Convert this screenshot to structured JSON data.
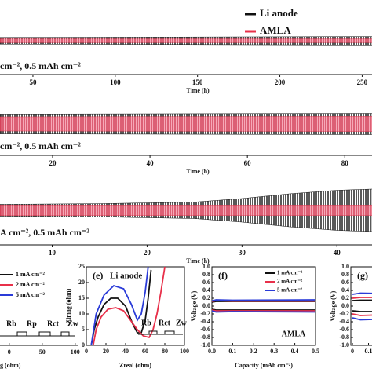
{
  "legend": [
    {
      "name": "Li anode",
      "color": "#111111"
    },
    {
      "name": "AMLA",
      "color": "#e8304a"
    }
  ],
  "chart_data": [
    {
      "type": "band",
      "text": "cm⁻², 0.5 mAh cm⁻²",
      "xlabel": "Time (h)",
      "xlim": [
        30,
        256
      ],
      "xticks": [
        50,
        100,
        150,
        200,
        250
      ],
      "ylim": [
        -100,
        100
      ],
      "series": [
        {
          "x": [
            30,
            150,
            256
          ],
          "values": [
            14,
            16,
            18
          ]
        },
        {
          "x": [
            30,
            256
          ],
          "values": [
            8,
            8
          ]
        }
      ]
    },
    {
      "type": "band",
      "text": "cm⁻², 0.5 mAh cm⁻²",
      "xlabel": "Time (h)",
      "xlim": [
        9.2,
        85.6
      ],
      "xticks": [
        20,
        40,
        60,
        80
      ],
      "ylim": [
        -100,
        100
      ],
      "series": [
        {
          "x": [
            9.2,
            85.6
          ],
          "values": [
            42,
            45
          ]
        },
        {
          "x": [
            9.2,
            85.6
          ],
          "values": [
            30,
            32
          ]
        }
      ]
    },
    {
      "type": "band",
      "text": "A cm⁻², 0.5 mAh cm⁻²",
      "xlabel": "Time (h)",
      "xlim": [
        4.5,
        43.7
      ],
      "xticks": [
        10,
        20,
        30,
        40
      ],
      "ylim": [
        -100,
        100
      ],
      "series": [
        {
          "x": [
            4.5,
            15,
            25,
            30,
            35,
            40,
            43.7
          ],
          "values": [
            25,
            28,
            35,
            50,
            70,
            85,
            90
          ]
        },
        {
          "x": [
            4.5,
            43.7
          ],
          "values": [
            22,
            22
          ]
        }
      ]
    },
    {
      "type": "circuit",
      "xlabel": "g (ohm)",
      "xlim": [
        -20,
        105
      ],
      "xticks": [
        0,
        50,
        100
      ],
      "series": [
        {
          "name": "1 mA cm⁻²",
          "color": "#111111"
        },
        {
          "name": "2 mA cm⁻²",
          "color": "#e8304a"
        },
        {
          "name": "5 mA cm⁻²",
          "color": "#2a3bd8"
        }
      ],
      "elements": [
        {
          "label": "Rb",
          "color": "#111111"
        },
        {
          "label": "Rp",
          "color": "#22b0d8"
        },
        {
          "label": "Rct",
          "color": "#f08a20"
        },
        {
          "label": "Zw",
          "color": "#111111"
        }
      ]
    },
    {
      "type": "line",
      "label": "(e)",
      "title": "Li anode",
      "xlabel": "Zreal (ohm)",
      "ylabel": "Zimag (ohm)",
      "xlim": [
        0,
        100
      ],
      "ylim": [
        0,
        25
      ],
      "xticks": [
        0,
        20,
        40,
        60,
        80,
        100
      ],
      "yticks": [
        0,
        5,
        10,
        15,
        20,
        25
      ],
      "elements": [
        {
          "label": "Rb",
          "color": "#111111"
        },
        {
          "label": "Rct",
          "color": "#f08a20"
        },
        {
          "label": "Zw",
          "color": "#111111"
        }
      ],
      "series": [
        {
          "color": "#111111",
          "x": [
            5,
            8,
            12,
            18,
            25,
            32,
            40,
            47,
            52,
            56,
            60,
            63,
            66
          ],
          "values": [
            0,
            5,
            9,
            13,
            15,
            15,
            12.5,
            7,
            4,
            4,
            8,
            15,
            24
          ]
        },
        {
          "color": "#e8304a",
          "x": [
            7,
            10,
            15,
            22,
            30,
            38,
            45,
            52,
            58,
            64,
            68,
            72,
            76,
            80
          ],
          "values": [
            0,
            5,
            9,
            11.5,
            12,
            11,
            8,
            5,
            3,
            2.5,
            5,
            10,
            17,
            25
          ]
        },
        {
          "color": "#2a3bd8",
          "x": [
            5,
            10,
            18,
            28,
            38,
            46,
            52,
            56,
            60,
            63
          ],
          "values": [
            0,
            10,
            16,
            19,
            18,
            13,
            8,
            10,
            17,
            25
          ]
        }
      ]
    },
    {
      "type": "line",
      "label": "(f)",
      "title": "AMLA",
      "xlabel": "Capacity (mAh cm⁻²)",
      "ylabel": "Voltage (V)",
      "xlim": [
        0,
        0.5
      ],
      "ylim": [
        -1,
        1
      ],
      "xticks": [
        {
          "value": 0,
          "label": "0.0"
        },
        0.1,
        0.2,
        0.3,
        0.4,
        0.5
      ],
      "yticks": [
        {
          "value": 1,
          "label": "1.0"
        },
        0.8,
        0.6,
        0.4,
        0.2,
        {
          "value": 0,
          "label": "0.0"
        },
        -0.2,
        -0.4,
        -0.6,
        -0.8,
        {
          "value": -1,
          "label": "-1.0"
        }
      ],
      "series": [
        {
          "name": "1 mA cm⁻²",
          "color": "#111111",
          "x": [
            0,
            0.02,
            0.1,
            0.5
          ],
          "values": [
            0.1,
            0.12,
            0.12,
            0.12
          ]
        },
        {
          "name": "2 mA cm⁻²",
          "color": "#e8304a",
          "x": [
            0,
            0.02,
            0.1,
            0.5
          ],
          "values": [
            0.12,
            0.14,
            0.13,
            0.13
          ]
        },
        {
          "name": "5 mA cm⁻²",
          "color": "#2a3bd8",
          "x": [
            0,
            0.02,
            0.1,
            0.5
          ],
          "values": [
            0.13,
            0.16,
            0.15,
            0.16
          ]
        },
        {
          "color": "#111111",
          "x": [
            0,
            0.02,
            0.1,
            0.5
          ],
          "values": [
            -0.08,
            -0.1,
            -0.1,
            -0.1
          ]
        },
        {
          "color": "#e8304a",
          "x": [
            0,
            0.02,
            0.1,
            0.5
          ],
          "values": [
            -0.1,
            -0.12,
            -0.12,
            -0.12
          ]
        },
        {
          "color": "#2a3bd8",
          "x": [
            0,
            0.02,
            0.1,
            0.5
          ],
          "values": [
            -0.12,
            -0.15,
            -0.14,
            -0.15
          ]
        }
      ]
    },
    {
      "type": "line",
      "label": "(g)",
      "ylabel": "Voltage (V)",
      "xlim": [
        -0.01,
        0.2
      ],
      "ylim": [
        -1,
        1
      ],
      "xticks": [
        0,
        0.1
      ],
      "yticks": [
        {
          "value": 1,
          "label": "1.0"
        },
        0.8,
        0.6,
        0.4,
        0.2,
        {
          "value": 0,
          "label": "0.0"
        },
        -0.2,
        -0.4,
        -0.6,
        -0.8,
        {
          "value": -1,
          "label": "-1.0"
        }
      ],
      "series": [
        {
          "color": "#2a3bd8",
          "x": [
            0,
            0.05,
            0.2
          ],
          "values": [
            0.3,
            0.33,
            0.32
          ]
        },
        {
          "color": "#e8304a",
          "x": [
            0,
            0.05,
            0.2
          ],
          "values": [
            0.2,
            0.22,
            0.22
          ]
        },
        {
          "color": "#111111",
          "x": [
            0,
            0.05,
            0.2
          ],
          "values": [
            0.14,
            0.15,
            0.15
          ]
        },
        {
          "color": "#2a3bd8",
          "x": [
            0,
            0.05,
            0.2
          ],
          "values": [
            -0.3,
            -0.35,
            -0.33
          ]
        },
        {
          "color": "#e8304a",
          "x": [
            0,
            0.05,
            0.2
          ],
          "values": [
            -0.2,
            -0.24,
            -0.22
          ]
        },
        {
          "color": "#111111",
          "x": [
            0,
            0.05,
            0.2
          ],
          "values": [
            -0.12,
            -0.14,
            -0.14
          ]
        }
      ]
    }
  ]
}
